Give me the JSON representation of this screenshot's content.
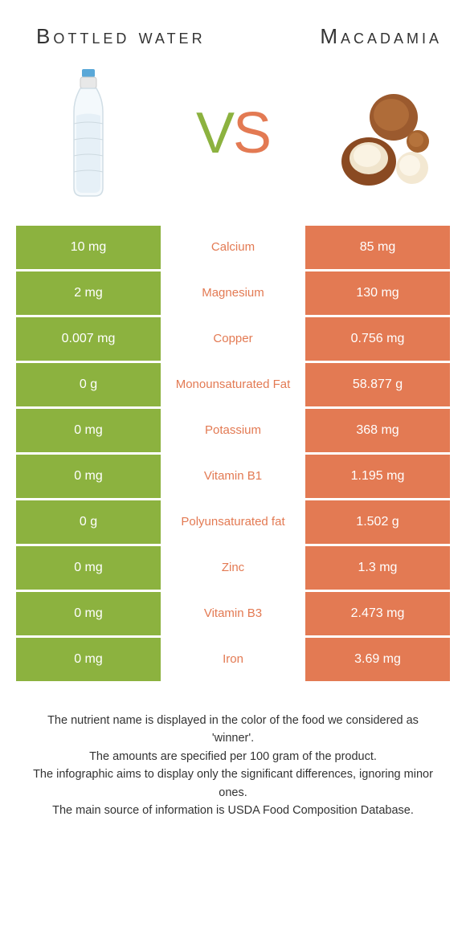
{
  "titles": {
    "left": "Bottled water",
    "right": "Macadamia"
  },
  "vs": {
    "v": "V",
    "s": "S"
  },
  "colors": {
    "left_bg": "#8cb23f",
    "right_bg": "#e37a53",
    "mid_green": "#8cb23f",
    "mid_orange": "#e37a53"
  },
  "rows": [
    {
      "left": "10 mg",
      "label": "Calcium",
      "right": "85 mg",
      "winner": "right"
    },
    {
      "left": "2 mg",
      "label": "Magnesium",
      "right": "130 mg",
      "winner": "right"
    },
    {
      "left": "0.007 mg",
      "label": "Copper",
      "right": "0.756 mg",
      "winner": "right"
    },
    {
      "left": "0 g",
      "label": "Monounsaturated Fat",
      "right": "58.877 g",
      "winner": "right"
    },
    {
      "left": "0 mg",
      "label": "Potassium",
      "right": "368 mg",
      "winner": "right"
    },
    {
      "left": "0 mg",
      "label": "Vitamin B1",
      "right": "1.195 mg",
      "winner": "right"
    },
    {
      "left": "0 g",
      "label": "Polyunsaturated fat",
      "right": "1.502 g",
      "winner": "right"
    },
    {
      "left": "0 mg",
      "label": "Zinc",
      "right": "1.3 mg",
      "winner": "right"
    },
    {
      "left": "0 mg",
      "label": "Vitamin B3",
      "right": "2.473 mg",
      "winner": "right"
    },
    {
      "left": "0 mg",
      "label": "Iron",
      "right": "3.69 mg",
      "winner": "right"
    }
  ],
  "footer": {
    "l1": "The nutrient name is displayed in the color of the food we considered as 'winner'.",
    "l2": "The amounts are specified per 100 gram of the product.",
    "l3": "The infographic aims to display only the significant differences, ignoring minor ones.",
    "l4": "The main source of information is USDA Food Composition Database."
  }
}
